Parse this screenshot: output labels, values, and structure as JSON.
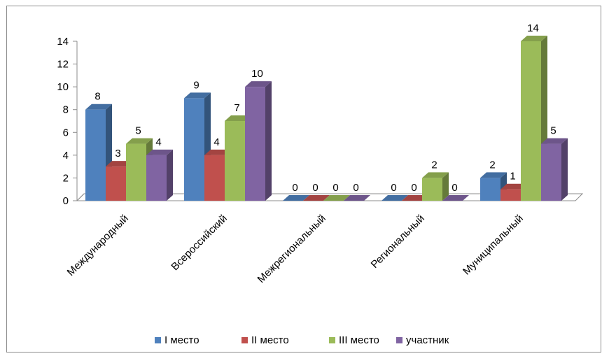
{
  "chart_data": {
    "type": "bar",
    "categories": [
      "Международный",
      "Всероссийский",
      "Межрегиональный",
      "Региональный",
      "Муниципальный"
    ],
    "series": [
      {
        "name": "I место",
        "values": [
          8,
          9,
          0,
          0,
          2
        ],
        "color": "#4f81bd"
      },
      {
        "name": "II место",
        "values": [
          3,
          4,
          0,
          0,
          1
        ],
        "color": "#c0504d"
      },
      {
        "name": "III место",
        "values": [
          5,
          7,
          0,
          2,
          14
        ],
        "color": "#9bbb59"
      },
      {
        "name": "участник",
        "values": [
          4,
          10,
          0,
          0,
          5
        ],
        "color": "#8064a2"
      }
    ],
    "title": "",
    "xlabel": "",
    "ylabel": "",
    "ylim": [
      0,
      14
    ],
    "yticks": [
      0,
      2,
      4,
      6,
      8,
      10,
      12,
      14
    ],
    "grid": false,
    "legend": "bottom",
    "style": "3d-clustered-column"
  }
}
